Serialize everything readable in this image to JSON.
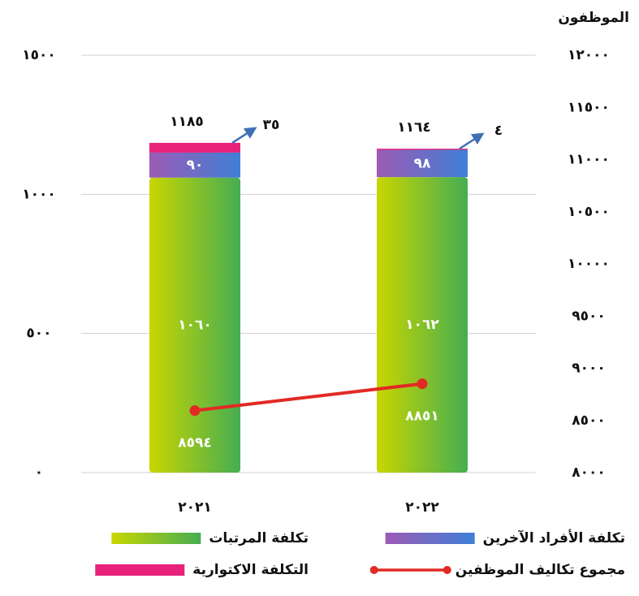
{
  "chart_data": {
    "type": "bar",
    "stacked": true,
    "categories": [
      "٢٠٢١",
      "٢٠٢٢"
    ],
    "series": [
      {
        "name": "تكلفة المرتبات",
        "color": [
          "#c9d600",
          "#45ad52"
        ],
        "values": [
          1060,
          1062
        ],
        "value_labels": [
          "١٠٦٠",
          "١٠٦٢"
        ]
      },
      {
        "name": "تكلفة الأفراد الآخرين",
        "color": [
          "#9c5bb5",
          "#3f7fd6"
        ],
        "values": [
          90,
          98
        ],
        "value_labels": [
          "٩٠",
          "٩٨"
        ]
      },
      {
        "name": "التكلفة الاكتوارية",
        "color": "#e8217a",
        "values": [
          35,
          4
        ],
        "value_labels": [
          "٣٥",
          "٤"
        ]
      },
      {
        "name": "مجموع تكاليف الموظفين",
        "type": "line",
        "axis": "y2",
        "color": "#e22a25",
        "values": [
          8594,
          8851
        ],
        "value_labels": [
          "٨٥٩٤",
          "٨٨٥١"
        ]
      }
    ],
    "totals": {
      "values": [
        1185,
        1164
      ],
      "value_labels": [
        "١١٨٥",
        "١١٦٤"
      ]
    },
    "y2label": "الموظفون",
    "ylim": [
      0,
      1500
    ],
    "yticks": [
      {
        "value": 0,
        "label": "٠"
      },
      {
        "value": 500,
        "label": "٥٠٠"
      },
      {
        "value": 1000,
        "label": "١٠٠٠"
      },
      {
        "value": 1500,
        "label": "١٥٠٠"
      }
    ],
    "y2lim": [
      8000,
      12000
    ],
    "y2ticks": [
      {
        "value": 8000,
        "label": "٨٠٠٠"
      },
      {
        "value": 8500,
        "label": "٨٥٠٠"
      },
      {
        "value": 9000,
        "label": "٩٠٠٠"
      },
      {
        "value": 9500,
        "label": "٩٥٠٠"
      },
      {
        "value": 10000,
        "label": "١٠٠٠٠"
      },
      {
        "value": 10500,
        "label": "١٠٥٠٠"
      },
      {
        "value": 11000,
        "label": "١١٠٠٠"
      },
      {
        "value": 11500,
        "label": "١١٥٠٠"
      },
      {
        "value": 12000,
        "label": "١٢٠٠٠"
      }
    ],
    "grid": true
  }
}
